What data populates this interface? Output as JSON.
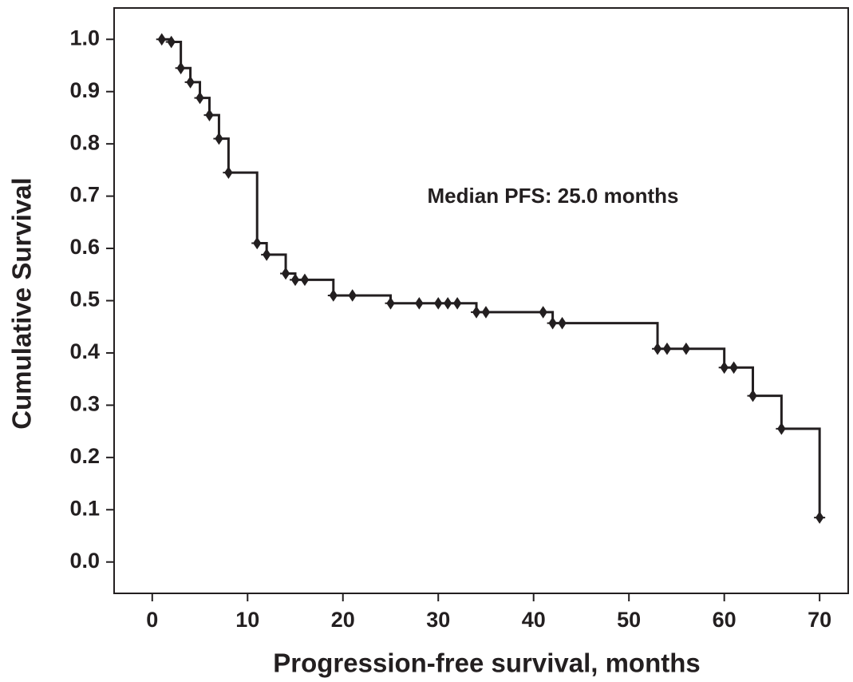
{
  "chart_data": {
    "type": "step",
    "annotation": "Median PFS: 25.0 months",
    "x_label": "Progression-free survival, months",
    "y_label": "Cumulative Survival",
    "xlim": [
      -4,
      73
    ],
    "ylim": [
      -0.06,
      1.06
    ],
    "xticks": [
      0,
      10,
      20,
      30,
      40,
      50,
      60,
      70
    ],
    "yticks": [
      {
        "value": 0.0,
        "label": "0.0"
      },
      {
        "value": 0.1,
        "label": "0.1"
      },
      {
        "value": 0.2,
        "label": "0.2"
      },
      {
        "value": 0.3,
        "label": "0.3"
      },
      {
        "value": 0.4,
        "label": "0.4"
      },
      {
        "value": 0.5,
        "label": "0.5"
      },
      {
        "value": 0.6,
        "label": "0.6"
      },
      {
        "value": 0.7,
        "label": "0.7"
      },
      {
        "value": 0.8,
        "label": "0.8"
      },
      {
        "value": 0.9,
        "label": "0.9"
      },
      {
        "value": 1.0,
        "label": "1.0"
      }
    ],
    "color": "#231f20",
    "x": [
      1,
      2,
      3,
      4,
      5,
      6,
      7,
      8,
      11,
      12,
      14,
      15,
      19,
      25,
      34,
      42,
      53,
      60,
      63,
      66,
      70
    ],
    "values": [
      1.0,
      0.995,
      0.945,
      0.918,
      0.888,
      0.855,
      0.81,
      0.745,
      0.61,
      0.588,
      0.552,
      0.54,
      0.51,
      0.495,
      0.478,
      0.457,
      0.408,
      0.372,
      0.318,
      0.255,
      0.085
    ],
    "censored": {
      "x": [
        1,
        2,
        3,
        4,
        5,
        6,
        7,
        8,
        11,
        12,
        14,
        15,
        16,
        19,
        21,
        25,
        28,
        30,
        31,
        32,
        34,
        35,
        41,
        42,
        43,
        53,
        54,
        56,
        60,
        61,
        63,
        66,
        70
      ],
      "values": [
        1.0,
        0.995,
        0.945,
        0.918,
        0.888,
        0.855,
        0.81,
        0.745,
        0.61,
        0.588,
        0.552,
        0.54,
        0.54,
        0.51,
        0.51,
        0.495,
        0.495,
        0.495,
        0.495,
        0.495,
        0.478,
        0.478,
        0.478,
        0.457,
        0.457,
        0.408,
        0.408,
        0.408,
        0.372,
        0.372,
        0.318,
        0.255,
        0.085
      ]
    }
  }
}
